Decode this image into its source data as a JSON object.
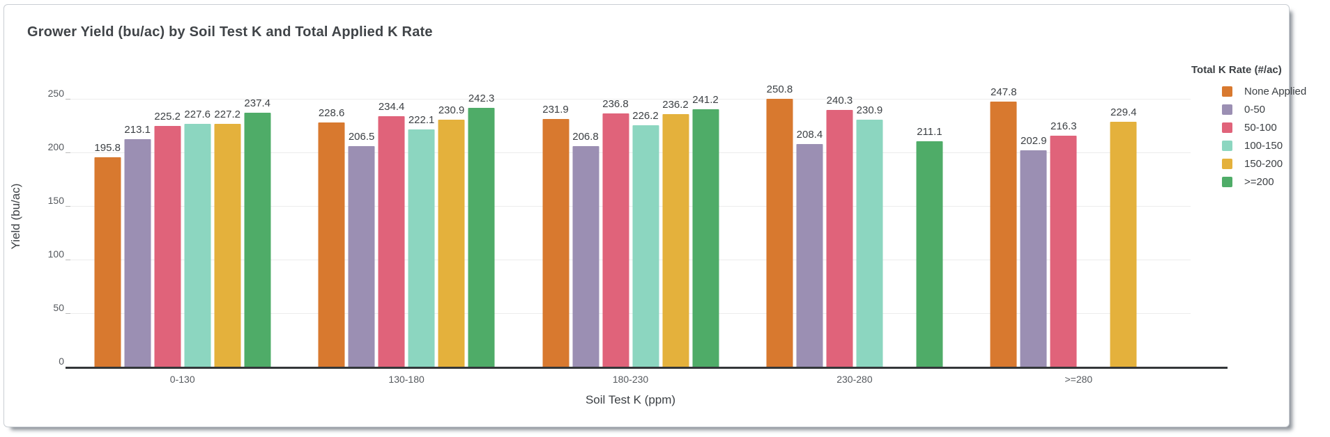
{
  "card": {
    "title": "Grower Yield (bu/ac) by Soil Test K and Total Applied K Rate"
  },
  "chart_data": {
    "type": "bar",
    "title": "Grower Yield (bu/ac) by Soil Test K and Total Applied K Rate",
    "xlabel": "Soil Test K (ppm)",
    "ylabel": "Yield (bu/ac)",
    "categories": [
      "0-130",
      "130-180",
      "180-230",
      "230-280",
      ">=280"
    ],
    "yticks": [
      0,
      50,
      100,
      150,
      200,
      250
    ],
    "ylim": [
      0,
      280
    ],
    "grid": true,
    "legend_position": "right",
    "legend_title": "Total K Rate (#/ac)",
    "series": [
      {
        "name": "None Applied",
        "color": "#D8792F",
        "values": [
          195.8,
          228.6,
          231.9,
          250.8,
          247.8
        ]
      },
      {
        "name": "0-50",
        "color": "#9B8FB3",
        "values": [
          213.1,
          206.5,
          206.8,
          208.4,
          202.9
        ]
      },
      {
        "name": "50-100",
        "color": "#E0637A",
        "values": [
          225.2,
          234.4,
          236.8,
          240.3,
          216.3
        ]
      },
      {
        "name": "100-150",
        "color": "#8CD6C0",
        "values": [
          227.6,
          222.1,
          226.2,
          230.9,
          null
        ]
      },
      {
        "name": "150-200",
        "color": "#E4B13C",
        "values": [
          227.2,
          230.9,
          236.2,
          null,
          229.4
        ]
      },
      {
        "name": ">=200",
        "color": "#4FAC68",
        "values": [
          237.4,
          242.3,
          241.2,
          211.1,
          null
        ]
      }
    ]
  }
}
